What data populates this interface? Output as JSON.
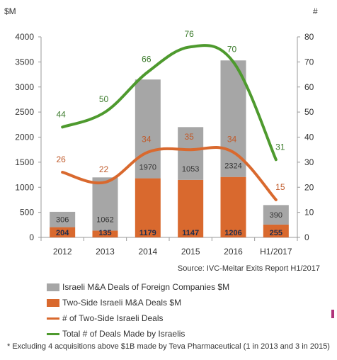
{
  "chart_data": {
    "type": "bar",
    "left_axis_unit": "$M",
    "right_axis_unit": "#",
    "categories": [
      "2012",
      "2013",
      "2014",
      "2015",
      "2016",
      "H1/2017"
    ],
    "left_ylim": [
      0,
      4000
    ],
    "left_ticks": [
      "0",
      "500",
      "1000",
      "1500",
      "2000",
      "2500",
      "3000",
      "3500",
      "4000"
    ],
    "right_ylim": [
      0,
      80
    ],
    "right_ticks": [
      "0",
      "10",
      "20",
      "30",
      "40",
      "50",
      "60",
      "70",
      "80"
    ],
    "stacked_series": [
      {
        "name": "Two-Side Israeli M&A Deals $M",
        "color": "#d9692e",
        "values": [
          204,
          135,
          1179,
          1147,
          1206,
          255
        ]
      },
      {
        "name": "Israeli M&A Deals of Foreign Companies $M",
        "color": "#a6a6a6",
        "values": [
          306,
          1062,
          1970,
          1053,
          2324,
          390
        ]
      }
    ],
    "line_series": [
      {
        "name": "# of Two-Side Israeli Deals",
        "color": "#d9692e",
        "values": [
          26,
          22,
          34,
          35,
          34,
          15
        ]
      },
      {
        "name": "Total # of Deals Made by Israelis",
        "color": "#4e9a2e",
        "values": [
          44,
          50,
          66,
          76,
          70,
          31
        ]
      }
    ],
    "grid": false,
    "legend_position": "bottom"
  },
  "legend": [
    {
      "label": "Israeli M&A Deals of Foreign Companies $M",
      "kind": "box",
      "color": "#a6a6a6"
    },
    {
      "label": "Two-Side Israeli M&A Deals $M",
      "kind": "box",
      "color": "#d9692e"
    },
    {
      "label": "# of Two-Side Israeli Deals",
      "kind": "line",
      "color": "#d9692e"
    },
    {
      "label": "Total # of Deals Made by Israelis",
      "kind": "line",
      "color": "#4e9a2e"
    }
  ],
  "source": "Source: IVC-Meitar Exits Report H1/2017",
  "footnote": "* Excluding 4 acquisitions above $1B made by Teva  Pharmaceutical (1 in 2013 and 3 in 2015)"
}
